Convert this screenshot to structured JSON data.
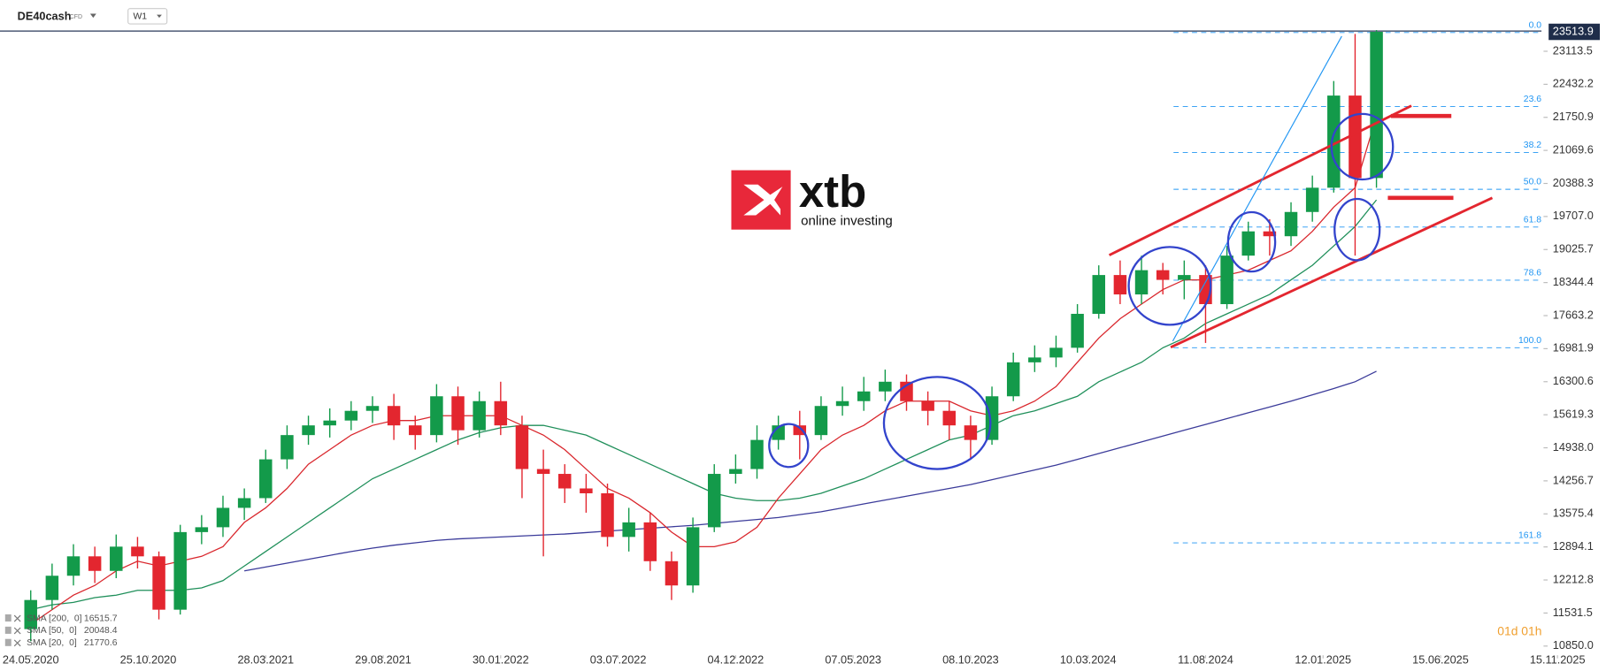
{
  "header": {
    "symbol": "DE40cash",
    "market": "CFD",
    "timeframe": "W1"
  },
  "watermark": {
    "brand": "xtb",
    "tagline": "online investing"
  },
  "countdown": "01d 01h",
  "chart_data": {
    "type": "candlestick",
    "x": [
      0,
      4,
      8,
      12,
      16,
      20,
      24,
      28,
      32,
      36,
      40,
      44,
      48,
      52,
      56,
      60,
      64,
      68,
      72,
      76,
      80,
      84,
      88,
      92,
      96,
      100,
      104,
      108,
      112,
      116,
      120,
      124,
      128,
      132,
      136,
      140,
      144,
      148,
      152,
      156,
      160,
      164,
      168,
      172,
      176,
      180,
      184,
      188,
      192,
      196,
      200,
      204,
      208,
      212,
      216,
      220,
      224,
      228,
      232,
      236,
      240,
      244,
      248,
      252
    ],
    "open": [
      11200,
      11800,
      12300,
      12700,
      12400,
      12900,
      12700,
      11600,
      13200,
      13300,
      13700,
      13900,
      14700,
      15200,
      15400,
      15500,
      15700,
      15800,
      15400,
      15200,
      16000,
      15300,
      15900,
      15400,
      14500,
      14400,
      14100,
      14000,
      13100,
      13400,
      12600,
      12100,
      13300,
      14400,
      14500,
      15100,
      15400,
      15200,
      15800,
      15900,
      16100,
      16300,
      15900,
      15700,
      15400,
      15100,
      16000,
      16700,
      16800,
      17000,
      17700,
      18500,
      18100,
      18600,
      18400,
      18500,
      17900,
      18900,
      19400,
      19300,
      19800,
      20300,
      22200,
      20500
    ],
    "high": [
      12000,
      12550,
      12950,
      12900,
      13150,
      13100,
      12800,
      13350,
      13550,
      13950,
      14100,
      14900,
      15400,
      15600,
      15750,
      15900,
      16000,
      16050,
      15600,
      16250,
      16200,
      16100,
      16300,
      15600,
      14900,
      14600,
      14400,
      14200,
      13700,
      13600,
      12800,
      13500,
      14600,
      14800,
      15400,
      15600,
      15700,
      16000,
      16200,
      16400,
      16550,
      16450,
      16100,
      15900,
      15600,
      16200,
      16900,
      17050,
      17250,
      17900,
      18700,
      18800,
      18900,
      18750,
      18800,
      18700,
      19100,
      19600,
      19650,
      20000,
      20550,
      22500,
      23470,
      23550
    ],
    "low": [
      10950,
      11600,
      12100,
      12150,
      12250,
      12450,
      11400,
      11500,
      12950,
      13100,
      13450,
      13800,
      14500,
      15000,
      15150,
      15300,
      15450,
      15100,
      14900,
      15050,
      15000,
      15150,
      15200,
      13900,
      12700,
      13800,
      13600,
      12900,
      12800,
      12400,
      11800,
      11950,
      13200,
      14200,
      14300,
      14900,
      14700,
      15100,
      15600,
      15700,
      15900,
      15700,
      15400,
      15100,
      14700,
      15000,
      15900,
      16500,
      16600,
      16900,
      17600,
      17900,
      17900,
      18100,
      18000,
      17100,
      17800,
      18800,
      18900,
      19100,
      19600,
      20200,
      18900,
      20300
    ],
    "close": [
      11800,
      12300,
      12700,
      12400,
      12900,
      12700,
      11600,
      13200,
      13300,
      13700,
      13900,
      14700,
      15200,
      15400,
      15500,
      15700,
      15800,
      15400,
      15200,
      16000,
      15300,
      15900,
      15400,
      14500,
      14400,
      14100,
      14000,
      13100,
      13400,
      12600,
      12100,
      13300,
      14400,
      14500,
      15100,
      15400,
      15200,
      15800,
      15900,
      16100,
      16300,
      15900,
      15700,
      15400,
      15100,
      16000,
      16700,
      16800,
      17000,
      17700,
      18500,
      18100,
      18600,
      18400,
      18500,
      17900,
      18900,
      19400,
      19300,
      19800,
      20300,
      22200,
      20500,
      23513.9
    ],
    "up_color": "#139a4a",
    "down_color": "#e3262f",
    "price_box_color": "#1f2d4a",
    "grid": false,
    "xlim": [
      -5.754,
      282.9
    ],
    "ylim": [
      10660,
      23530
    ],
    "yticks": [
      {
        "value": 10850,
        "label": "10850.0"
      },
      11531.5,
      12212.8,
      12894.1,
      13575.4,
      14256.7,
      {
        "value": 14938,
        "label": "14938.0"
      },
      15619.3,
      16300.6,
      16981.9,
      17663.2,
      18344.4,
      19025.7,
      {
        "value": 19707,
        "label": "19707.0"
      },
      20388.3,
      21069.6,
      21750.9,
      22432.2,
      23113.5
    ],
    "xticks": [
      {
        "value": 0,
        "label": "24.05.2020"
      },
      {
        "value": 22,
        "label": "25.10.2020"
      },
      {
        "value": 44,
        "label": "28.03.2021"
      },
      {
        "value": 66,
        "label": "29.08.2021"
      },
      {
        "value": 88,
        "label": "30.01.2022"
      },
      {
        "value": 110,
        "label": "03.07.2022"
      },
      {
        "value": 132,
        "label": "04.12.2022"
      },
      {
        "value": 154,
        "label": "07.05.2023"
      },
      {
        "value": 176,
        "label": "08.10.2023"
      },
      {
        "value": 198,
        "label": "10.03.2024"
      },
      {
        "value": 220,
        "label": "11.08.2024"
      },
      {
        "value": 242,
        "label": "12.01.2025"
      },
      {
        "value": 264,
        "label": "15.06.2025"
      },
      {
        "value": 285.9,
        "label": "15.11.2025"
      }
    ],
    "indicators": [
      {
        "name": "SMA [200,  0]",
        "color": "#3b3b9a",
        "values": [
          null,
          null,
          null,
          null,
          null,
          null,
          null,
          null,
          null,
          null,
          12400,
          12480,
          12560,
          12640,
          12720,
          12800,
          12870,
          12930,
          12980,
          13030,
          13060,
          13080,
          13100,
          13120,
          13140,
          13160,
          13190,
          13220,
          13250,
          13280,
          13310,
          13340,
          13380,
          13420,
          13460,
          13500,
          13560,
          13620,
          13700,
          13780,
          13860,
          13940,
          14020,
          14100,
          14180,
          14280,
          14380,
          14480,
          14580,
          14700,
          14820,
          14940,
          15060,
          15180,
          15300,
          15420,
          15540,
          15660,
          15780,
          15900,
          16030,
          16160,
          16300,
          16515.7
        ]
      },
      {
        "name": "SMA [50,  0]",
        "color": "#1f8f5a",
        "values": [
          11600,
          11700,
          11750,
          11850,
          11900,
          12000,
          12000,
          12000,
          12050,
          12200,
          12500,
          12800,
          13100,
          13400,
          13700,
          14000,
          14300,
          14500,
          14700,
          14900,
          15100,
          15250,
          15350,
          15400,
          15400,
          15300,
          15200,
          15000,
          14800,
          14600,
          14400,
          14200,
          14000,
          13900,
          13850,
          13850,
          13900,
          14000,
          14150,
          14300,
          14500,
          14700,
          14900,
          15100,
          15200,
          15400,
          15600,
          15700,
          15850,
          16000,
          16300,
          16500,
          16700,
          17000,
          17200,
          17500,
          17700,
          17900,
          18100,
          18400,
          18700,
          19100,
          19500,
          20048.4
        ]
      },
      {
        "name": "SMA [20,  0]",
        "color": "#d9262c",
        "values": [
          11300,
          11600,
          11900,
          12100,
          12400,
          12600,
          12500,
          12600,
          12700,
          12900,
          13400,
          13700,
          14100,
          14600,
          14900,
          15200,
          15400,
          15500,
          15500,
          15600,
          15600,
          15600,
          15600,
          15400,
          15200,
          14900,
          14500,
          14100,
          13900,
          13600,
          13200,
          12900,
          12900,
          13000,
          13300,
          13900,
          14400,
          14900,
          15200,
          15400,
          15700,
          15900,
          15900,
          15900,
          15700,
          15600,
          15700,
          15900,
          16200,
          16700,
          17200,
          17600,
          17900,
          18200,
          18400,
          18400,
          18500,
          18600,
          18800,
          19000,
          19400,
          19900,
          20300,
          21770.6
        ]
      }
    ],
    "fibonacci": {
      "start_x": 214,
      "color": "#2196f3",
      "levels": [
        {
          "ratio": "0.0",
          "price": 23500
        },
        {
          "ratio": "23.6",
          "price": 21975
        },
        {
          "ratio": "38.2",
          "price": 21027
        },
        {
          "ratio": "50.0",
          "price": 20268
        },
        {
          "ratio": "61.8",
          "price": 19489
        },
        {
          "ratio": "78.6",
          "price": 18393
        },
        {
          "ratio": "100.0",
          "price": 17002
        },
        {
          "ratio": "161.8",
          "price": 12978
        }
      ]
    }
  }
}
